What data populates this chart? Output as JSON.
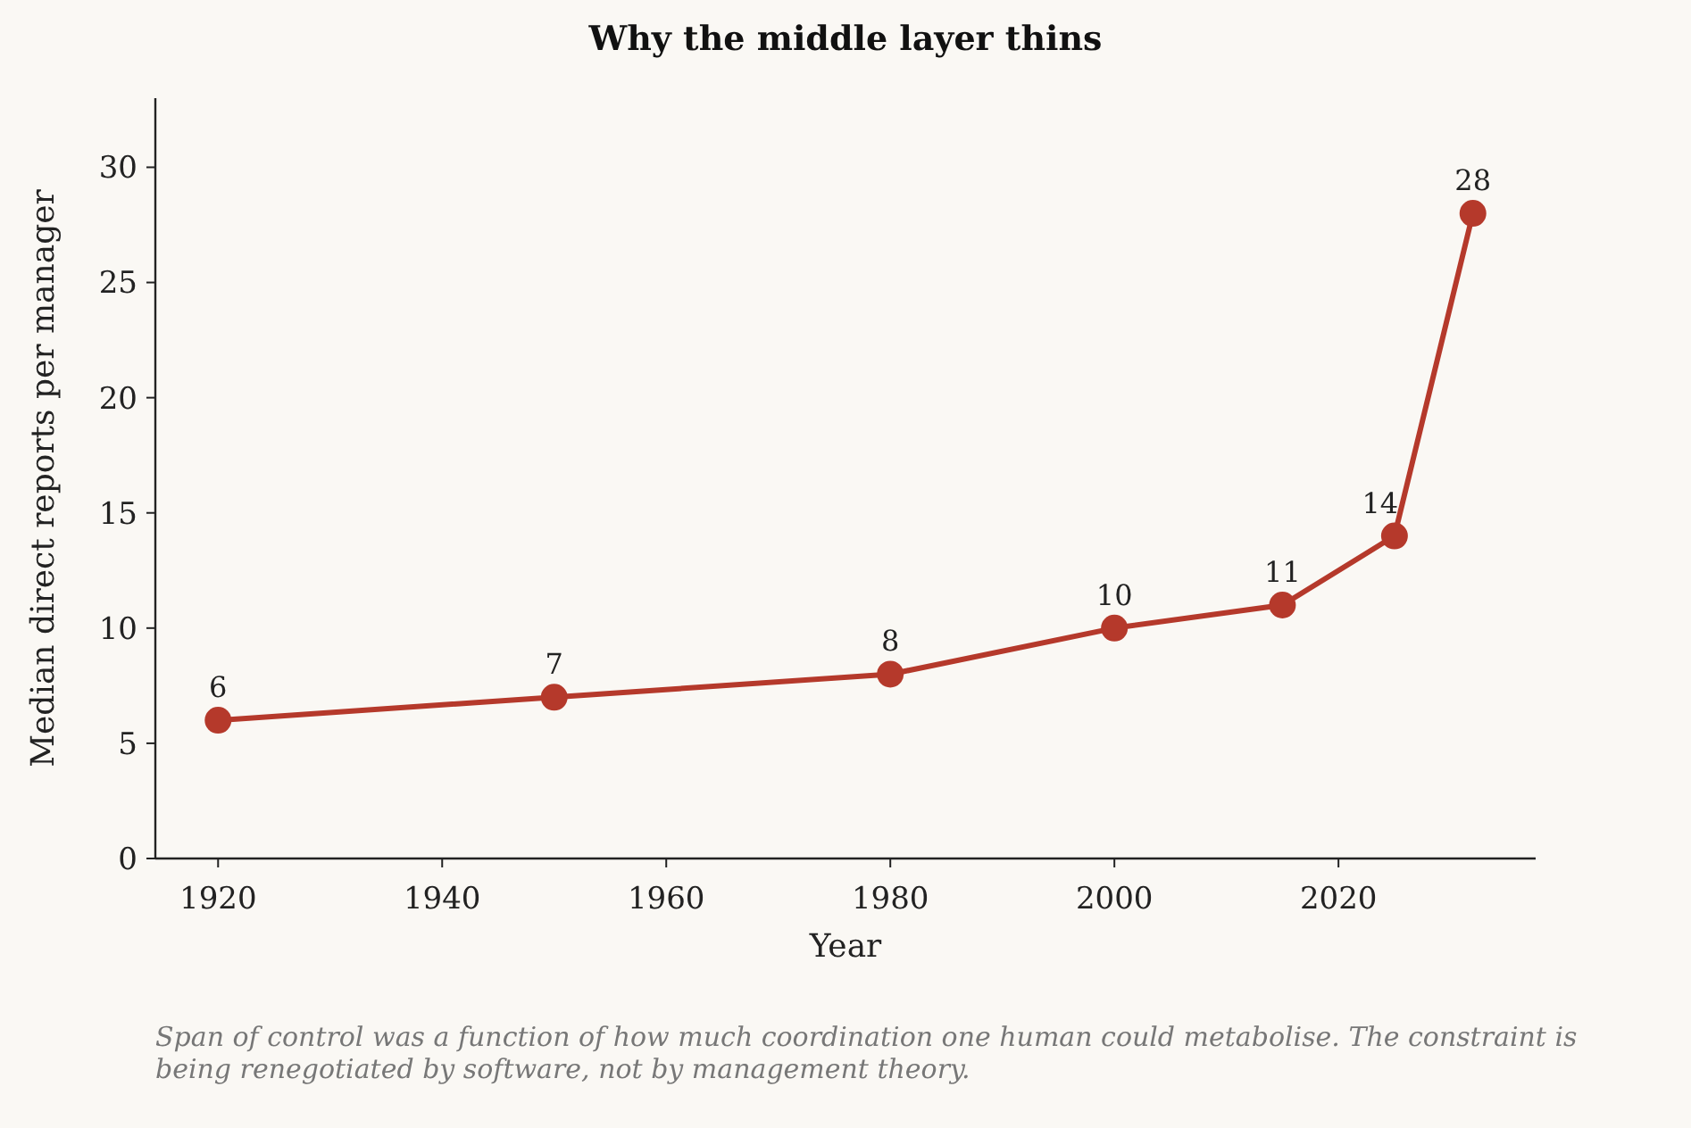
{
  "chart_data": {
    "type": "line",
    "title": "Why the middle layer thins",
    "xlabel": "Year",
    "ylabel": "Median direct reports per manager",
    "x": [
      1920,
      1950,
      1980,
      2000,
      2015,
      2025,
      2032
    ],
    "series": [
      {
        "color": "#b5392b",
        "values": [
          6,
          7,
          8,
          10,
          11,
          14,
          28
        ]
      }
    ],
    "xlim": [
      1914.4,
      2037.6
    ],
    "xticks": [
      1920,
      1940,
      1960,
      1980,
      2000,
      2020
    ],
    "ylim": [
      0,
      33
    ],
    "yticks": [
      0,
      5,
      10,
      15,
      20,
      25,
      30
    ],
    "marker": "circle",
    "line_style": "solid",
    "data_labels": true,
    "grid": false,
    "annotations": [
      "Span of control was a function of how much coordination one human could metabolise. The constraint is\nbeing renegotiated by software, not by management theory."
    ]
  }
}
